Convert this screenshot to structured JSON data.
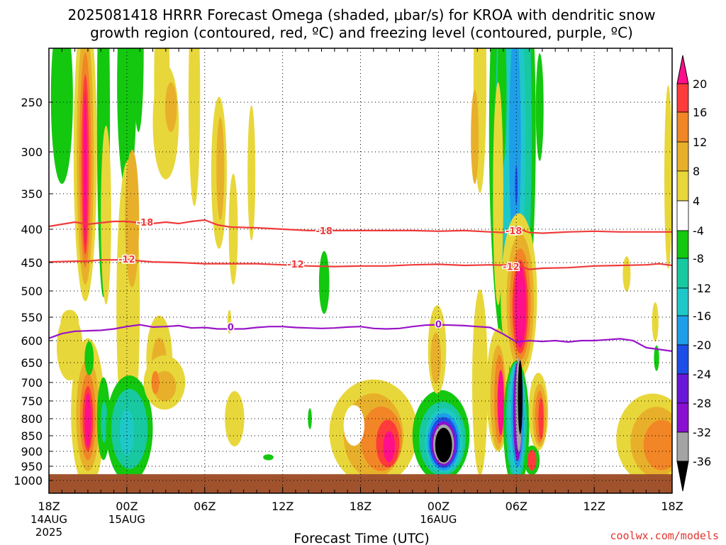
{
  "colors": {
    "pink": "#ff0f8c",
    "red": "#ff3b3b",
    "orange": "#f28526",
    "dk_yellow": "#e8b02a",
    "yellow": "#e8d73a",
    "green": "#13c80f",
    "teal": "#18c8a0",
    "cyan": "#1fc8c8",
    "ltblue": "#1e9ee8",
    "blue": "#1d4fe8",
    "purple": "#8a10d0",
    "grey": "#a4a4a4",
    "black": "#000000",
    "ground": "#a0522d",
    "dgz_line": "#ef3b3b",
    "freezing_line": "#9a14c8"
  },
  "chart_data": {
    "type": "heatmap",
    "title_line1": "2025081418 HRRR Forecast Omega (shaded, μbar/s) for KROA with dendritic snow",
    "title_line2": "growth region (contoured, red, ºC) and freezing level (contoured, purple, ºC)",
    "xlabel": "Forecast Time (UTC)",
    "credit": "coolwx.com/models",
    "x_range_hours": [
      0,
      48
    ],
    "x_ticks": [
      {
        "h": 0,
        "label": "18Z",
        "sub1": "14AUG",
        "sub2": "2025"
      },
      {
        "h": 6,
        "label": "00Z",
        "sub1": "15AUG",
        "sub2": ""
      },
      {
        "h": 12,
        "label": "06Z",
        "sub1": "",
        "sub2": ""
      },
      {
        "h": 18,
        "label": "12Z",
        "sub1": "",
        "sub2": ""
      },
      {
        "h": 24,
        "label": "18Z",
        "sub1": "",
        "sub2": ""
      },
      {
        "h": 30,
        "label": "00Z",
        "sub1": "16AUG",
        "sub2": ""
      },
      {
        "h": 36,
        "label": "06Z",
        "sub1": "",
        "sub2": ""
      },
      {
        "h": 42,
        "label": "12Z",
        "sub1": "",
        "sub2": ""
      },
      {
        "h": 48,
        "label": "18Z",
        "sub1": "",
        "sub2": ""
      }
    ],
    "y_ticks_hpa": [
      250,
      300,
      350,
      400,
      450,
      500,
      550,
      600,
      650,
      700,
      750,
      800,
      850,
      900,
      950,
      1000
    ],
    "y_range_hpa": [
      200,
      1050
    ],
    "ground_top_hpa": 978,
    "colorbar": {
      "labels": [
        "20",
        "16",
        "12",
        "8",
        "4",
        "-4",
        "-8",
        "-12",
        "-16",
        "-20",
        "-24",
        "-28",
        "-32",
        "-36"
      ],
      "colors": [
        "#ff0f8c",
        "#ff3b3b",
        "#f28526",
        "#e8b02a",
        "#e8d73a",
        "#ffffff",
        "#13c80f",
        "#18c8a0",
        "#1fc8c8",
        "#1e9ee8",
        "#1d4fe8",
        "#6a18d8",
        "#8a10d0",
        "#a4a4a4",
        "#000000"
      ]
    },
    "contours": [
      {
        "name": "-18",
        "color": "#ef3b3b",
        "points": [
          [
            0,
            396
          ],
          [
            1,
            393
          ],
          [
            2,
            390
          ],
          [
            3,
            393
          ],
          [
            4,
            391
          ],
          [
            5,
            389
          ],
          [
            6,
            389
          ],
          [
            7,
            391
          ],
          [
            8,
            392
          ],
          [
            9,
            390
          ],
          [
            10,
            392
          ],
          [
            11,
            389
          ],
          [
            12,
            387
          ],
          [
            13,
            394
          ],
          [
            14,
            397
          ],
          [
            16,
            398
          ],
          [
            18,
            400
          ],
          [
            20,
            402
          ],
          [
            22,
            402
          ],
          [
            24,
            402
          ],
          [
            26,
            402
          ],
          [
            28,
            402
          ],
          [
            30,
            403
          ],
          [
            32,
            402
          ],
          [
            34,
            404
          ],
          [
            35,
            405
          ],
          [
            36,
            398
          ],
          [
            37,
            405
          ],
          [
            38,
            406
          ],
          [
            40,
            404
          ],
          [
            42,
            403
          ],
          [
            44,
            404
          ],
          [
            46,
            404
          ],
          [
            48,
            404
          ]
        ],
        "labels": [
          [
            7.4,
            391
          ],
          [
            21.2,
            403
          ],
          [
            35.8,
            403
          ]
        ]
      },
      {
        "name": "-12",
        "color": "#ef3b3b",
        "points": [
          [
            0,
            449
          ],
          [
            2,
            448
          ],
          [
            3,
            448
          ],
          [
            4,
            446
          ],
          [
            6,
            446
          ],
          [
            8,
            449
          ],
          [
            10,
            450
          ],
          [
            12,
            452
          ],
          [
            14,
            452
          ],
          [
            16,
            452
          ],
          [
            18,
            454
          ],
          [
            20,
            456
          ],
          [
            22,
            457
          ],
          [
            24,
            456
          ],
          [
            26,
            456
          ],
          [
            28,
            454
          ],
          [
            30,
            453
          ],
          [
            32,
            455
          ],
          [
            34,
            454
          ],
          [
            36,
            455
          ],
          [
            37,
            462
          ],
          [
            38,
            460
          ],
          [
            40,
            459
          ],
          [
            42,
            456
          ],
          [
            44,
            455
          ],
          [
            46,
            454
          ],
          [
            47,
            452
          ],
          [
            48,
            455
          ]
        ],
        "labels": [
          [
            6,
            446
          ],
          [
            19,
            454
          ],
          [
            35.6,
            458
          ]
        ]
      },
      {
        "name": "0",
        "color": "#9a14c8",
        "points": [
          [
            0,
            595
          ],
          [
            1,
            585
          ],
          [
            2,
            580
          ],
          [
            3,
            579
          ],
          [
            4,
            578
          ],
          [
            5,
            575
          ],
          [
            6,
            570
          ],
          [
            7,
            566
          ],
          [
            8,
            571
          ],
          [
            9,
            570
          ],
          [
            10,
            568
          ],
          [
            11,
            573
          ],
          [
            12,
            572
          ],
          [
            13,
            575
          ],
          [
            14,
            575
          ],
          [
            15,
            575
          ],
          [
            16,
            572
          ],
          [
            17,
            570
          ],
          [
            18,
            570
          ],
          [
            19,
            572
          ],
          [
            20,
            573
          ],
          [
            21,
            574
          ],
          [
            22,
            573
          ],
          [
            23,
            571
          ],
          [
            24,
            570
          ],
          [
            25,
            574
          ],
          [
            26,
            575
          ],
          [
            27,
            574
          ],
          [
            28,
            570
          ],
          [
            29,
            567
          ],
          [
            30,
            566
          ],
          [
            31,
            567
          ],
          [
            32,
            568
          ],
          [
            33,
            570
          ],
          [
            34,
            572
          ],
          [
            35,
            586
          ],
          [
            36,
            603
          ],
          [
            37,
            600
          ],
          [
            38,
            602
          ],
          [
            39,
            600
          ],
          [
            40,
            603
          ],
          [
            41,
            600
          ],
          [
            42,
            600
          ],
          [
            43,
            598
          ],
          [
            44,
            596
          ],
          [
            45,
            600
          ],
          [
            46,
            616
          ],
          [
            47,
            620
          ],
          [
            48,
            624
          ]
        ],
        "labels": [
          [
            14,
            572
          ],
          [
            30,
            566
          ]
        ]
      }
    ]
  }
}
